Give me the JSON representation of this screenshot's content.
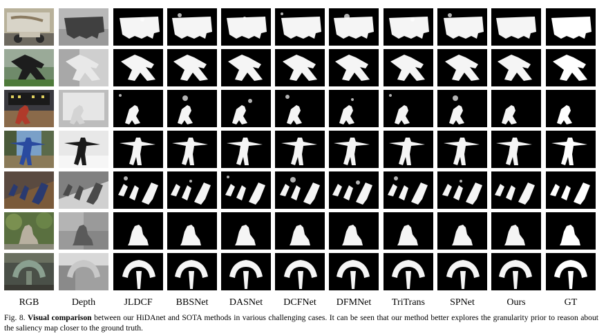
{
  "figure": {
    "columns": [
      "RGB",
      "Depth",
      "JLDCF",
      "BBSNet",
      "DASNet",
      "DCFNet",
      "DFMNet",
      "TriTrans",
      "SPNet",
      "Ours",
      "GT"
    ],
    "rows": [
      {
        "scene": "motorcycle-sign",
        "subject": "scooter"
      },
      {
        "scene": "park-sculpture",
        "subject": "sculpture"
      },
      {
        "scene": "baseball-scoreboard",
        "subject": "catcher"
      },
      {
        "scene": "outdoor-pose",
        "subject": "person-arm-extended"
      },
      {
        "scene": "tilted-deck",
        "subject": "three-people"
      },
      {
        "scene": "garden-statue",
        "subject": "statue"
      },
      {
        "scene": "fountain-sculpture",
        "subject": "arch-sculpture"
      }
    ]
  },
  "caption": {
    "label": "Fig. 8.",
    "bold": "Visual comparison",
    "text": "between our HiDAnet and SOTA methods in various challenging cases. It can be seen that our method better explores the granularity prior to reason about the saliency map closer to the ground truth."
  }
}
